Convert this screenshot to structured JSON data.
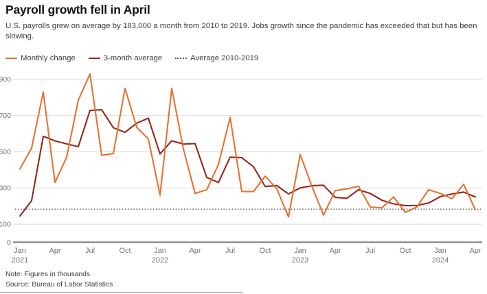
{
  "header": {
    "title": "Payroll growth fell in April",
    "subtitle": "U.S. payrolls grew on average by 183,000 a month from 2010 to 2019. Jobs growth since the pandemic has exceeded that but has been slowing."
  },
  "legend": [
    {
      "label": "Monthly change",
      "color": "#E87130",
      "style": "solid"
    },
    {
      "label": "3-month average",
      "color": "#96261A",
      "style": "solid"
    },
    {
      "label": "Average 2010-2019",
      "color": "#595959",
      "style": "dotted"
    }
  ],
  "chart_data": {
    "type": "line",
    "title": "Payroll growth fell in April",
    "units": "thousands of jobs",
    "x": [
      "Jan 2021",
      "Feb 2021",
      "Mar 2021",
      "Apr 2021",
      "May 2021",
      "Jun 2021",
      "Jul 2021",
      "Aug 2021",
      "Sep 2021",
      "Oct 2021",
      "Nov 2021",
      "Dec 2021",
      "Jan 2022",
      "Feb 2022",
      "Mar 2022",
      "Apr 2022",
      "May 2022",
      "Jun 2022",
      "Jul 2022",
      "Aug 2022",
      "Sep 2022",
      "Oct 2022",
      "Nov 2022",
      "Dec 2022",
      "Jan 2023",
      "Feb 2023",
      "Mar 2023",
      "Apr 2023",
      "May 2023",
      "Jun 2023",
      "Jul 2023",
      "Aug 2023",
      "Sep 2023",
      "Oct 2023",
      "Nov 2023",
      "Dec 2023",
      "Jan 2024",
      "Feb 2024",
      "Mar 2024",
      "Apr 2024"
    ],
    "series": [
      {
        "name": "Monthly change",
        "color": "#E87130",
        "values": [
          405,
          520,
          830,
          330,
          470,
          785,
          930,
          480,
          490,
          850,
          635,
          570,
          260,
          850,
          515,
          270,
          290,
          430,
          690,
          280,
          280,
          365,
          295,
          140,
          485,
          310,
          150,
          285,
          295,
          310,
          195,
          190,
          250,
          165,
          195,
          290,
          270,
          240,
          320,
          180
        ]
      },
      {
        "name": "3-month average",
        "color": "#96261A",
        "values": [
          145,
          230,
          585,
          560,
          543,
          528,
          728,
          732,
          633,
          607,
          658,
          685,
          488,
          560,
          542,
          545,
          358,
          330,
          470,
          467,
          417,
          308,
          313,
          267,
          300,
          312,
          315,
          248,
          243,
          290,
          270,
          232,
          212,
          202,
          203,
          217,
          252,
          267,
          277,
          250
        ]
      }
    ],
    "reference_line": {
      "label": "Average 2010-2019",
      "value": 183,
      "style": "dotted",
      "color": "#4f4f4f"
    },
    "ylim": [
      0,
      950
    ],
    "yticks": [
      0,
      100,
      300,
      500,
      700,
      900
    ],
    "xtick_every_n_months": 3,
    "grid": true,
    "legend_position": "top-left"
  },
  "footer": {
    "note": "Note: Figures in thousands",
    "source": "Source: Bureau of Labor Statistics"
  }
}
